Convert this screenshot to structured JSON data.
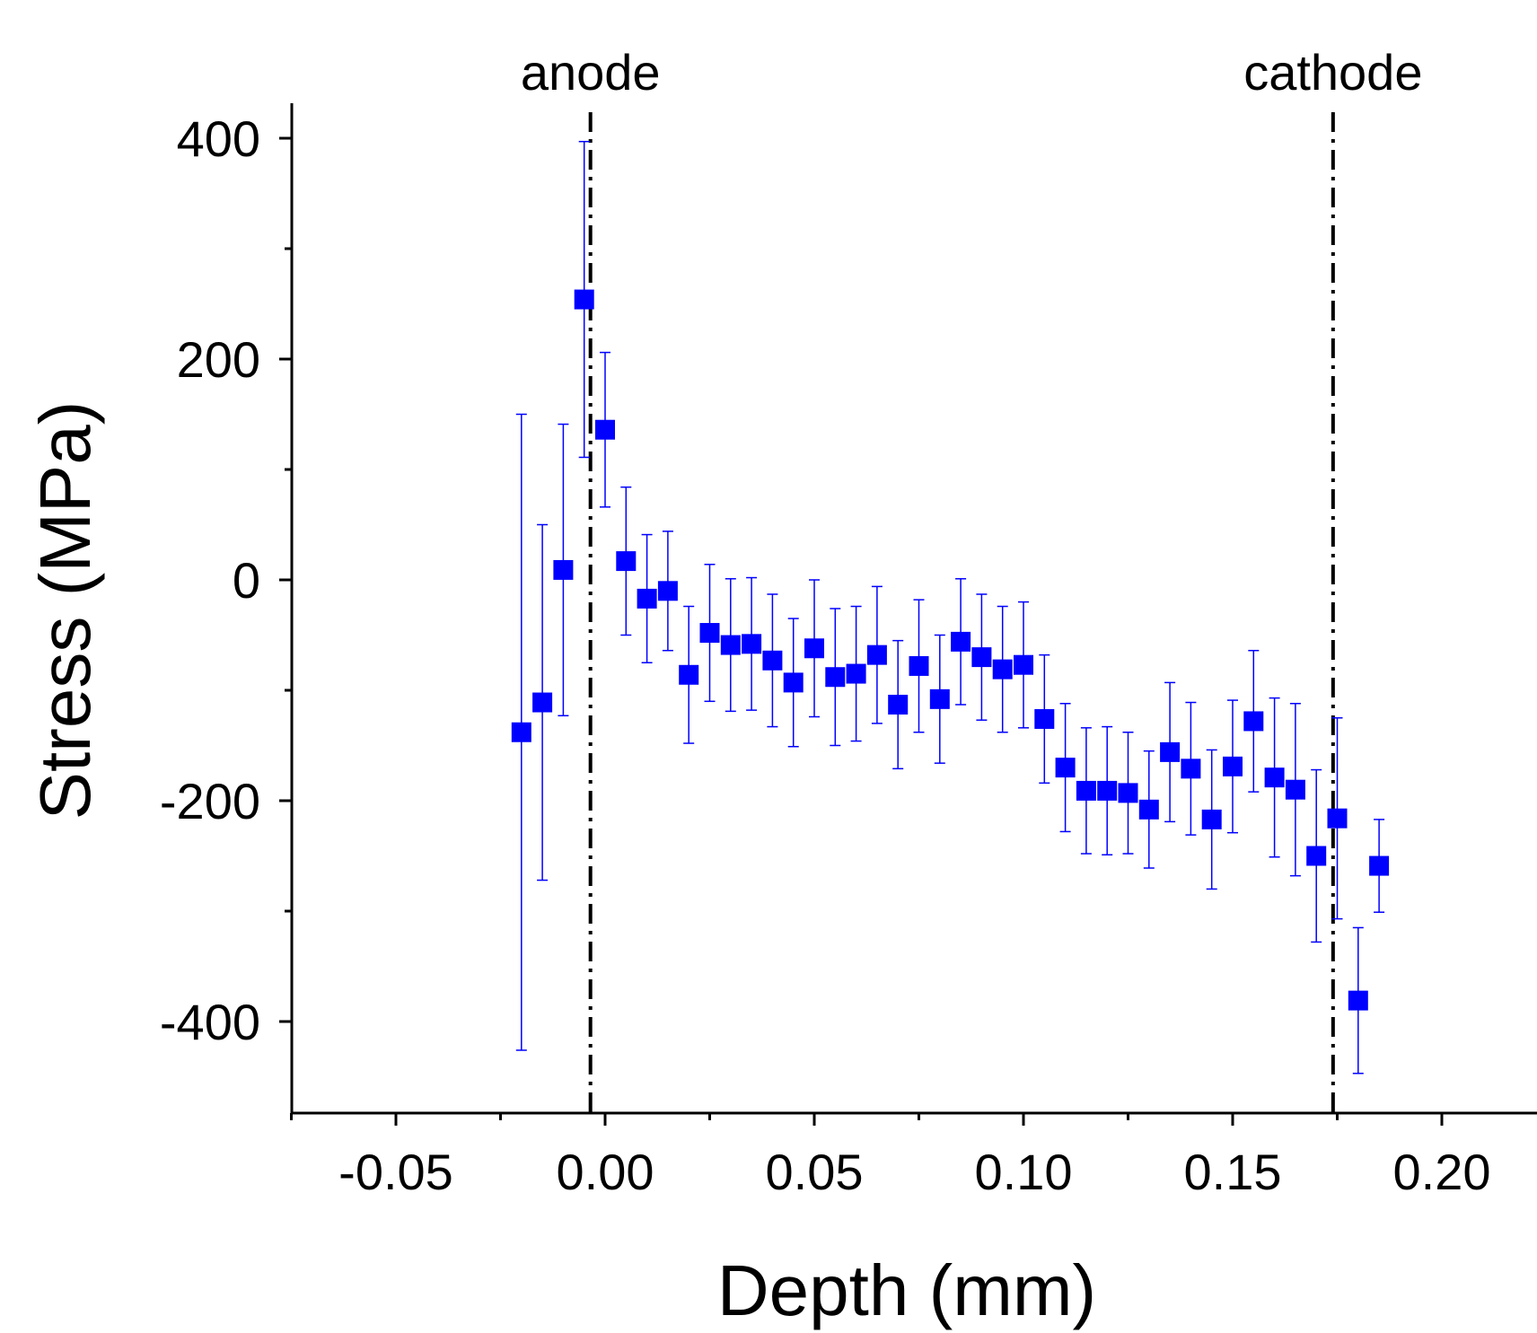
{
  "chart_data": {
    "type": "scatter",
    "title": "",
    "xlabel": "Depth (mm)",
    "ylabel": "Stress (MPa)",
    "xlim": [
      -0.075,
      0.225
    ],
    "ylim": [
      -480,
      430
    ],
    "xticks": [
      -0.05,
      0.0,
      0.05,
      0.1,
      0.15,
      0.2
    ],
    "xtick_labels": [
      "-0.05",
      "0.00",
      "0.05",
      "0.10",
      "0.15",
      "0.20"
    ],
    "yticks": [
      -400,
      -200,
      0,
      200,
      400
    ],
    "ytick_labels": [
      "-400",
      "-200",
      "0",
      "200",
      "400"
    ],
    "grid": false,
    "marker_color": "#0000ff",
    "line_color": "#000000",
    "annotations": [
      {
        "label": "anode",
        "x": -0.0035
      },
      {
        "label": "cathode",
        "x": 0.174
      }
    ],
    "series": [
      {
        "x": [
          -0.02,
          -0.015,
          -0.01,
          -0.005,
          0.0,
          0.005,
          0.01,
          0.015,
          0.02,
          0.025,
          0.03,
          0.035,
          0.04,
          0.045,
          0.05,
          0.055,
          0.06,
          0.065,
          0.07,
          0.075,
          0.08,
          0.085,
          0.09,
          0.095,
          0.1,
          0.105,
          0.11,
          0.115,
          0.12,
          0.125,
          0.13,
          0.135,
          0.14,
          0.145,
          0.15,
          0.155,
          0.16,
          0.165,
          0.17,
          0.175,
          0.18,
          0.185
        ],
        "y": [
          -138,
          -111,
          9,
          254,
          136,
          17,
          -17,
          -10,
          -86,
          -48,
          -59,
          -58,
          -73,
          -93,
          -62,
          -88,
          -85,
          -68,
          -113,
          -78,
          -108,
          -56,
          -70,
          -81,
          -77,
          -126,
          -170,
          -191,
          -191,
          -193,
          -208,
          -156,
          -171,
          -217,
          -169,
          -128,
          -179,
          -190,
          -250,
          -216,
          -381,
          -259
        ],
        "err": [
          288,
          161,
          132,
          143,
          70,
          67,
          58,
          54,
          62,
          62,
          60,
          60,
          60,
          58,
          62,
          62,
          61,
          62,
          58,
          60,
          58,
          57,
          57,
          57,
          57,
          58,
          58,
          57,
          58,
          55,
          53,
          63,
          60,
          63,
          60,
          64,
          72,
          78,
          78,
          91,
          66,
          42
        ]
      }
    ]
  }
}
